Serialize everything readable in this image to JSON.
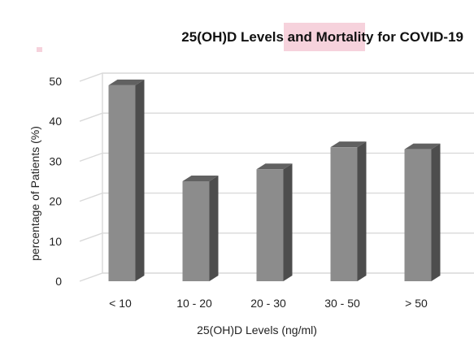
{
  "chart_data": {
    "type": "bar",
    "title_parts": [
      "25(OH)D Levels and ",
      "Mortality",
      " for COVID-19"
    ],
    "title_highlight_color": "#f6d2dc",
    "categories": [
      "< 10",
      "10 - 20",
      "20 - 30",
      "30 - 50",
      "> 50"
    ],
    "values": [
      49,
      25,
      28,
      33.5,
      33
    ],
    "xlabel": "25(OH)D Levels (ng/ml)",
    "ylabel": "percentage of Patients (%)",
    "ylim": [
      0,
      50
    ],
    "yticks": [
      0,
      10,
      20,
      30,
      40,
      50
    ],
    "grid": true,
    "bar_front_color": "#8c8c8c",
    "bar_side_color": "#4d4d4d",
    "bar_top_color": "#616161",
    "grid_color": "#d9d9d9"
  }
}
